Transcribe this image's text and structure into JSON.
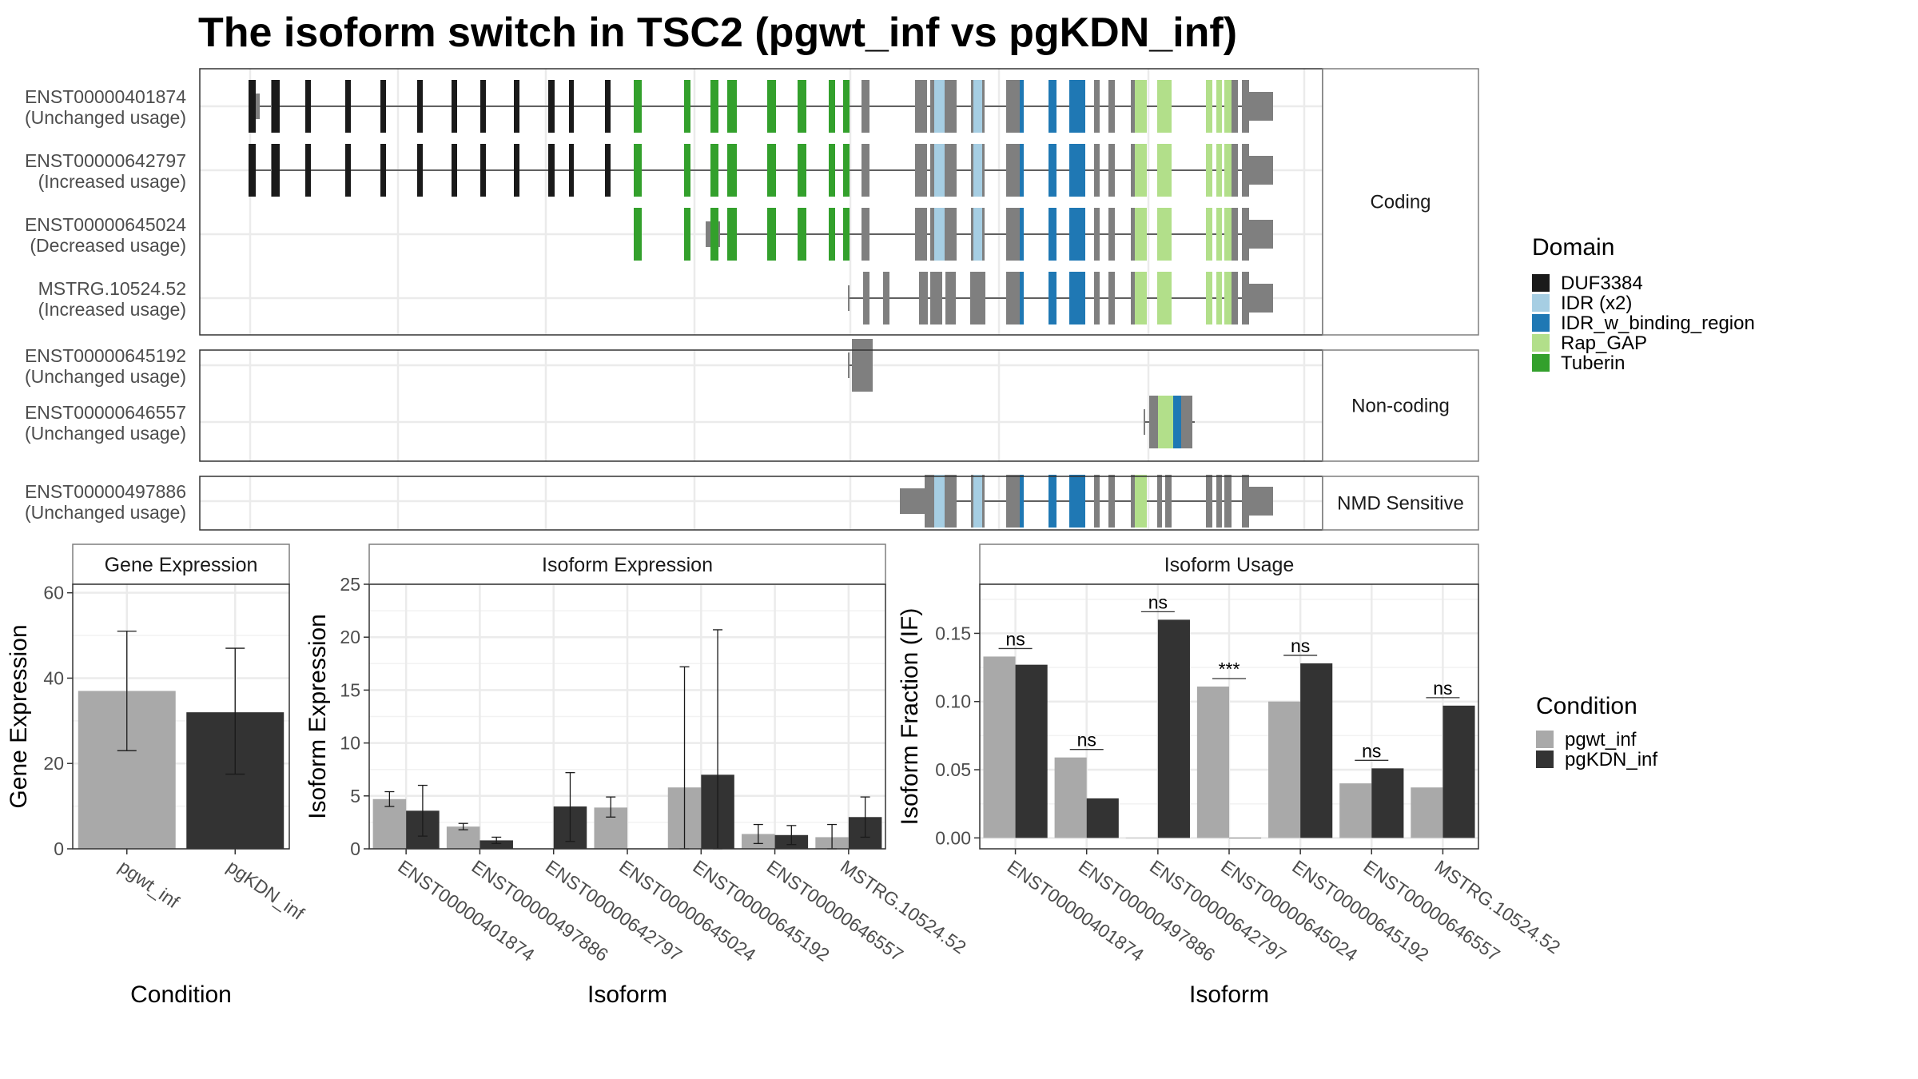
{
  "title": "The isoform switch in TSC2 (pgwt_inf vs pgKDN_inf)",
  "colors": {
    "DUF3384": "#1a1a1a",
    "IDR (x2)": "#a6cee3",
    "IDR_w_binding_region": "#1f78b4",
    "Rap_GAP": "#b2df8a",
    "Tuberin": "#33a02c",
    "exon": "#7f7f7f",
    "pgwt_inf": "#a9a9a9",
    "pgKDN_inf": "#333333"
  },
  "chart_data": [
    {
      "type": "gene-structure",
      "strips": [
        "Coding",
        "Non-coding",
        "NMD Sensitive"
      ],
      "groups": [
        {
          "strip": "Coding",
          "transcripts": [
            {
              "id": "ENST00000401874",
              "usage": "(Unchanged usage)"
            },
            {
              "id": "ENST00000642797",
              "usage": "(Increased usage)"
            },
            {
              "id": "ENST00000645024",
              "usage": "(Decreased usage)"
            },
            {
              "id": "MSTRG.10524.52",
              "usage": "(Increased usage)"
            }
          ]
        },
        {
          "strip": "Non-coding",
          "transcripts": [
            {
              "id": "ENST00000645192",
              "usage": "(Unchanged usage)"
            },
            {
              "id": "ENST00000646557",
              "usage": "(Unchanged usage)"
            }
          ]
        },
        {
          "strip": "NMD Sensitive",
          "transcripts": [
            {
              "id": "ENST00000497886",
              "usage": "(Unchanged usage)"
            }
          ]
        }
      ],
      "legend": {
        "title": "Domain",
        "entries": [
          "DUF3384",
          "IDR (x2)",
          "IDR_w_binding_region",
          "Rap_GAP",
          "Tuberin"
        ]
      }
    },
    {
      "type": "bar",
      "strip": "Gene Expression",
      "xlabel": "Condition",
      "ylabel": "Gene Expression",
      "categories": [
        "pgwt_inf",
        "pgKDN_inf"
      ],
      "values": [
        37,
        32
      ],
      "error_low": [
        23,
        17.5
      ],
      "error_high": [
        51,
        47
      ],
      "ylim": [
        0,
        62
      ],
      "yticks": [
        0,
        20,
        40,
        60
      ]
    },
    {
      "type": "bar",
      "strip": "Isoform Expression",
      "xlabel": "Isoform",
      "ylabel": "Isoform Expression",
      "categories": [
        "ENST00000401874",
        "ENST00000497886",
        "ENST00000642797",
        "ENST00000645024",
        "ENST00000645192",
        "ENST00000646557",
        "MSTRG.10524.52"
      ],
      "ylim": [
        0,
        25
      ],
      "yticks": [
        0,
        5,
        10,
        15,
        20,
        25
      ],
      "series": [
        {
          "name": "pgwt_inf",
          "values": [
            4.7,
            2.1,
            0,
            3.9,
            5.8,
            1.4,
            1.1
          ],
          "error_low": [
            4.0,
            1.8,
            0,
            3.0,
            0,
            0.5,
            0
          ],
          "error_high": [
            5.4,
            2.4,
            0,
            4.9,
            17.2,
            2.3,
            2.3
          ]
        },
        {
          "name": "pgKDN_inf",
          "values": [
            3.6,
            0.8,
            4.0,
            0,
            7.0,
            1.3,
            3.0
          ],
          "error_low": [
            1.2,
            0.5,
            0.7,
            0,
            0,
            0.4,
            1.1
          ],
          "error_high": [
            6.0,
            1.1,
            7.2,
            0,
            20.7,
            2.2,
            4.9
          ]
        }
      ]
    },
    {
      "type": "bar",
      "strip": "Isoform Usage",
      "xlabel": "Isoform",
      "ylabel": "Isoform Fraction (IF)",
      "categories": [
        "ENST00000401874",
        "ENST00000497886",
        "ENST00000642797",
        "ENST00000645024",
        "ENST00000645192",
        "ENST00000646557",
        "MSTRG.10524.52"
      ],
      "ylim": [
        -0.008,
        0.186
      ],
      "yticks": [
        0.0,
        0.05,
        0.1,
        0.15
      ],
      "ytick_labels": [
        "0.00",
        "0.05",
        "0.10",
        "0.15"
      ],
      "series": [
        {
          "name": "pgwt_inf",
          "values": [
            0.133,
            0.059,
            0,
            0.111,
            0.1,
            0.04,
            0.037
          ]
        },
        {
          "name": "pgKDN_inf",
          "values": [
            0.127,
            0.029,
            0.16,
            0,
            0.128,
            0.051,
            0.097
          ]
        }
      ],
      "significance": [
        "ns",
        "ns",
        "ns",
        "***",
        "ns",
        "ns",
        "ns"
      ]
    }
  ],
  "condition_legend": {
    "title": "Condition",
    "entries": [
      "pgwt_inf",
      "pgKDN_inf"
    ]
  }
}
